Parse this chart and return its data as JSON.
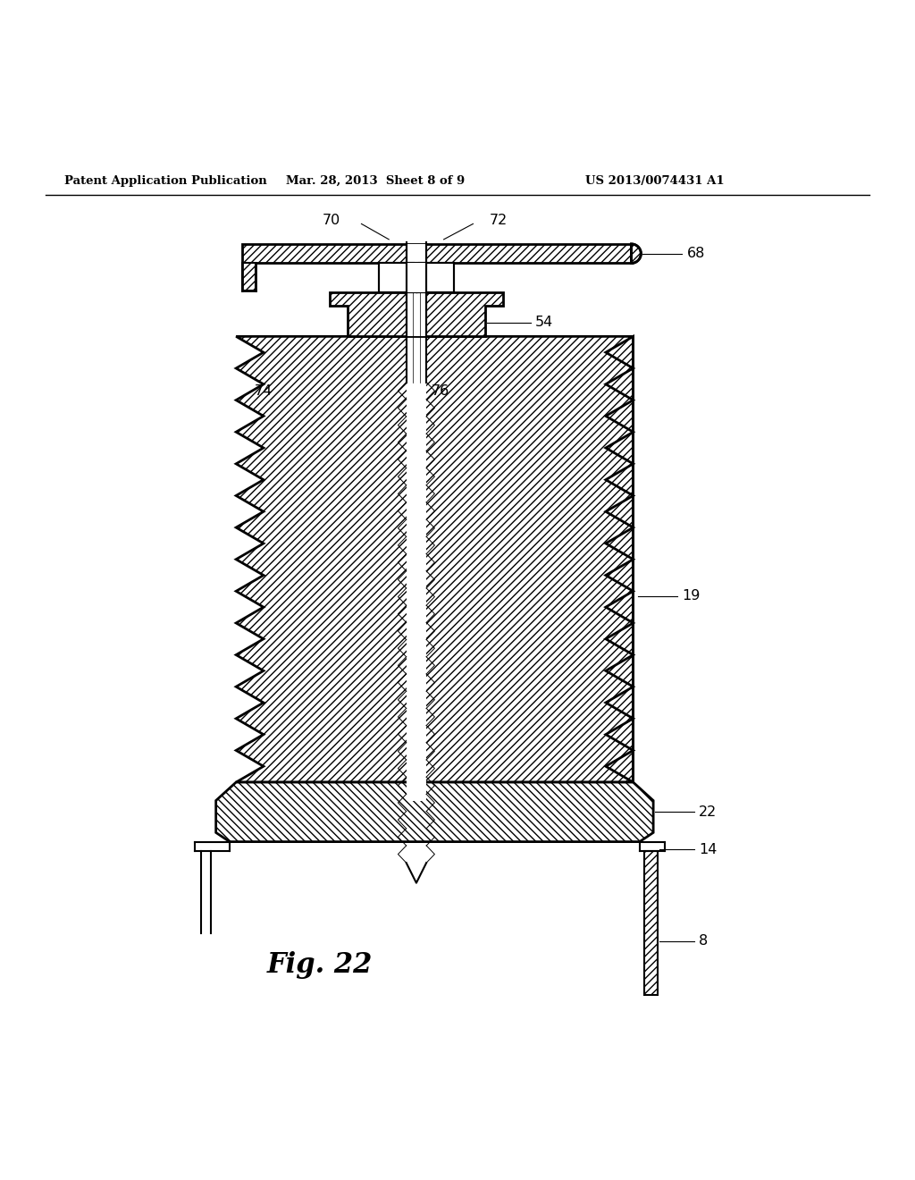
{
  "title_left": "Patent Application Publication",
  "title_center": "Mar. 28, 2013  Sheet 8 of 9",
  "title_right": "US 2013/0074431 A1",
  "fig_label": "Fig. 22",
  "bg_color": "#ffffff",
  "line_color": "#000000"
}
